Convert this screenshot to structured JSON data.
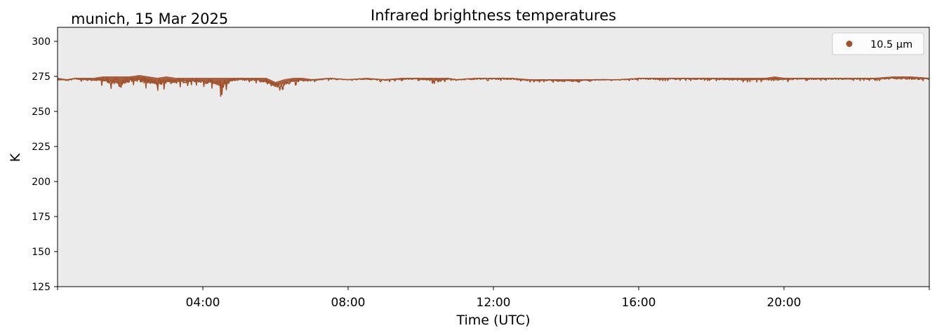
{
  "chart_data": {
    "type": "line",
    "title": "Infrared brightness temperatures",
    "subtitle": "munich, 15 Mar 2025",
    "xlabel": "Time (UTC)",
    "ylabel": "K",
    "xlim_hours": [
      0,
      24
    ],
    "ylim": [
      125,
      310
    ],
    "grid": false,
    "legend_position": "top-right",
    "x_ticks": [
      {
        "hour": 4,
        "label": "04:00"
      },
      {
        "hour": 8,
        "label": "08:00"
      },
      {
        "hour": 12,
        "label": "12:00"
      },
      {
        "hour": 16,
        "label": "16:00"
      },
      {
        "hour": 20,
        "label": "20:00"
      }
    ],
    "y_ticks": [
      125,
      150,
      175,
      200,
      225,
      250,
      275,
      300
    ],
    "series": [
      {
        "name": "10.5 µm",
        "color": "#a0522d",
        "x_hours": [
          0.0,
          0.25,
          0.5,
          0.75,
          1.0,
          1.25,
          1.5,
          1.75,
          2.0,
          2.25,
          2.5,
          2.75,
          3.0,
          3.25,
          3.5,
          3.75,
          4.0,
          4.25,
          4.5,
          4.75,
          5.0,
          5.25,
          5.5,
          5.75,
          6.0,
          6.25,
          6.5,
          6.75,
          7.0,
          7.5,
          8.0,
          8.5,
          9.0,
          9.5,
          10.0,
          10.5,
          10.75,
          11.0,
          11.5,
          12.0,
          12.5,
          13.0,
          13.5,
          14.0,
          14.5,
          15.0,
          15.5,
          16.0,
          16.5,
          17.0,
          17.5,
          18.0,
          18.5,
          19.0,
          19.5,
          19.75,
          20.0,
          20.5,
          21.0,
          21.5,
          22.0,
          22.5,
          23.0,
          23.5,
          24.0
        ],
        "y_min": [
          271,
          271,
          272,
          271,
          270,
          268,
          266,
          262,
          269,
          268,
          265,
          264,
          266,
          267,
          268,
          269,
          268,
          266,
          260,
          268,
          271,
          271,
          270,
          267,
          263,
          266,
          268,
          270,
          271,
          272,
          272,
          272,
          271,
          272,
          272,
          269,
          272,
          272,
          272,
          272,
          272,
          271,
          271,
          270,
          271,
          272,
          272,
          272,
          272,
          272,
          272,
          272,
          271,
          271,
          271,
          270,
          271,
          272,
          272,
          272,
          272,
          272,
          272,
          271,
          272
        ],
        "y_max": [
          274,
          273,
          274,
          274,
          274,
          275,
          275,
          275,
          275,
          276,
          275,
          274,
          275,
          274,
          274,
          274,
          274,
          274,
          274,
          274,
          274,
          274,
          274,
          274,
          271,
          273,
          274,
          274,
          273,
          274,
          273,
          274,
          273,
          274,
          274,
          274,
          274,
          273,
          274,
          274,
          274,
          273,
          273,
          273,
          273,
          273,
          273,
          274,
          274,
          274,
          274,
          274,
          274,
          274,
          274,
          275,
          274,
          274,
          274,
          274,
          274,
          274,
          275,
          275,
          274
        ]
      }
    ]
  }
}
